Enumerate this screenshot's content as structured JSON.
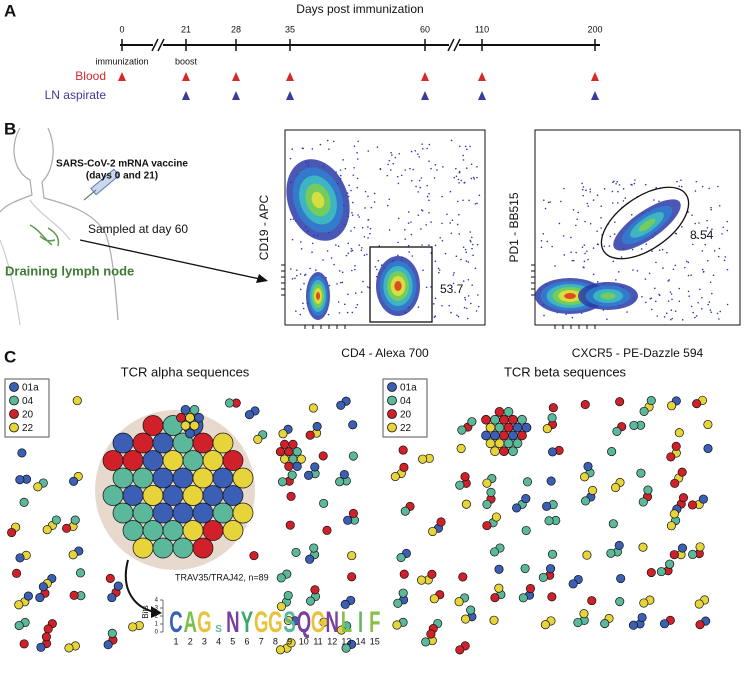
{
  "panel_a": {
    "label": "A",
    "title": "Days post immunization",
    "days": [
      0,
      21,
      28,
      35,
      60,
      110,
      200
    ],
    "annotations": [
      {
        "day": 0,
        "text": "immunization"
      },
      {
        "day": 21,
        "text": "boost"
      }
    ],
    "samples": [
      {
        "name": "Blood",
        "color": "#d42a2a",
        "days": [
          0,
          21,
          28,
          35,
          60,
          110,
          200
        ]
      },
      {
        "name": "LN aspirate",
        "color": "#3b3b9c",
        "days": [
          21,
          28,
          35,
          60,
          110,
          200
        ]
      }
    ]
  },
  "panel_b": {
    "label": "B",
    "vaccine": "SARS-CoV-2 mRNA vaccine",
    "vaccine_days": "(days 0 and 21)",
    "sampled": "Sampled at day 60",
    "site": "Draining lymph node",
    "plots": [
      {
        "ylabel": "CD19 - APC",
        "xlabel": "CD4 - Alexa 700",
        "gate": "53.7"
      },
      {
        "ylabel": "PD1 - BB515",
        "xlabel": "CXCR5 - PE-Dazzle 594",
        "gate": "8.54"
      }
    ]
  },
  "panel_c": {
    "label": "C",
    "titles": [
      "TCR alpha sequences",
      "TCR beta sequences"
    ],
    "legend": [
      {
        "name": "01a",
        "color": "#3a5fb5"
      },
      {
        "name": "04",
        "color": "#5cb89a"
      },
      {
        "name": "20",
        "color": "#d0212a"
      },
      {
        "name": "22",
        "color": "#e6d43a"
      }
    ],
    "motif": {
      "title": "TRAV35/TRAJ42, n=89",
      "axis": "Bits",
      "ticks": [
        0,
        1,
        2,
        3,
        4
      ],
      "letters": [
        "C",
        "A",
        "G",
        "S",
        "N",
        "Y",
        "G",
        "G",
        "S",
        "Q",
        "G",
        "N",
        "L",
        "I",
        "F"
      ],
      "positions": [
        1,
        2,
        3,
        4,
        5,
        6,
        7,
        8,
        9,
        10,
        11,
        12,
        13,
        14,
        15
      ]
    }
  }
}
